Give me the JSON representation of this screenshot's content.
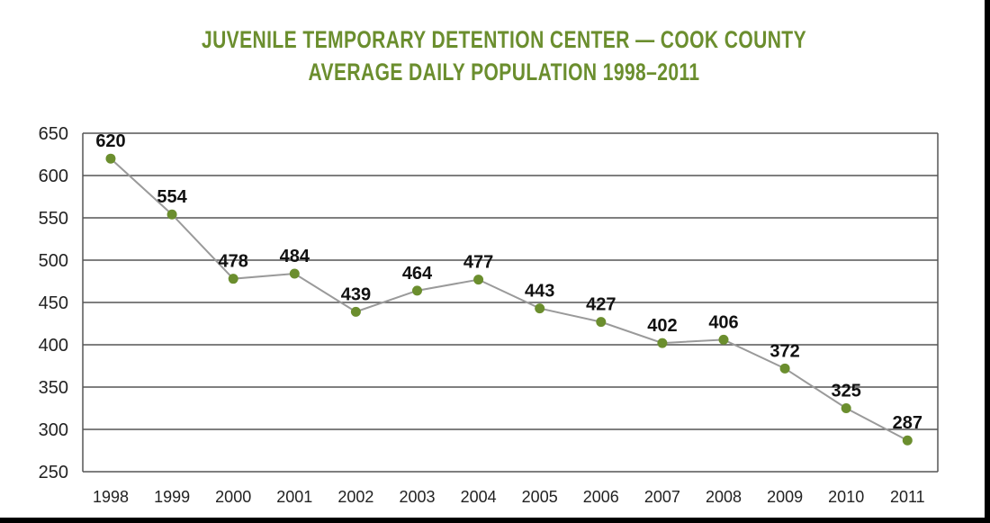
{
  "chart_data": {
    "type": "line",
    "title": "JUVENILE TEMPORARY DETENTION CENTER — COOK COUNTY",
    "subtitle": "AVERAGE DAILY POPULATION 1998–2011",
    "xlabel": "",
    "ylabel": "",
    "x": [
      "1998",
      "1999",
      "2000",
      "2001",
      "2002",
      "2003",
      "2004",
      "2005",
      "2006",
      "2007",
      "2008",
      "2009",
      "2010",
      "2011"
    ],
    "values": [
      620,
      554,
      478,
      484,
      439,
      464,
      477,
      443,
      427,
      402,
      406,
      372,
      325,
      287
    ],
    "ylim": [
      250,
      650
    ],
    "yticks": [
      250,
      300,
      350,
      400,
      450,
      500,
      550,
      600,
      650
    ],
    "grid": true,
    "legend": "none",
    "colors": {
      "title": "#6b8e2e",
      "line": "#9a9a9a",
      "marker": "#6b8e2e",
      "grid": "#555555"
    }
  }
}
